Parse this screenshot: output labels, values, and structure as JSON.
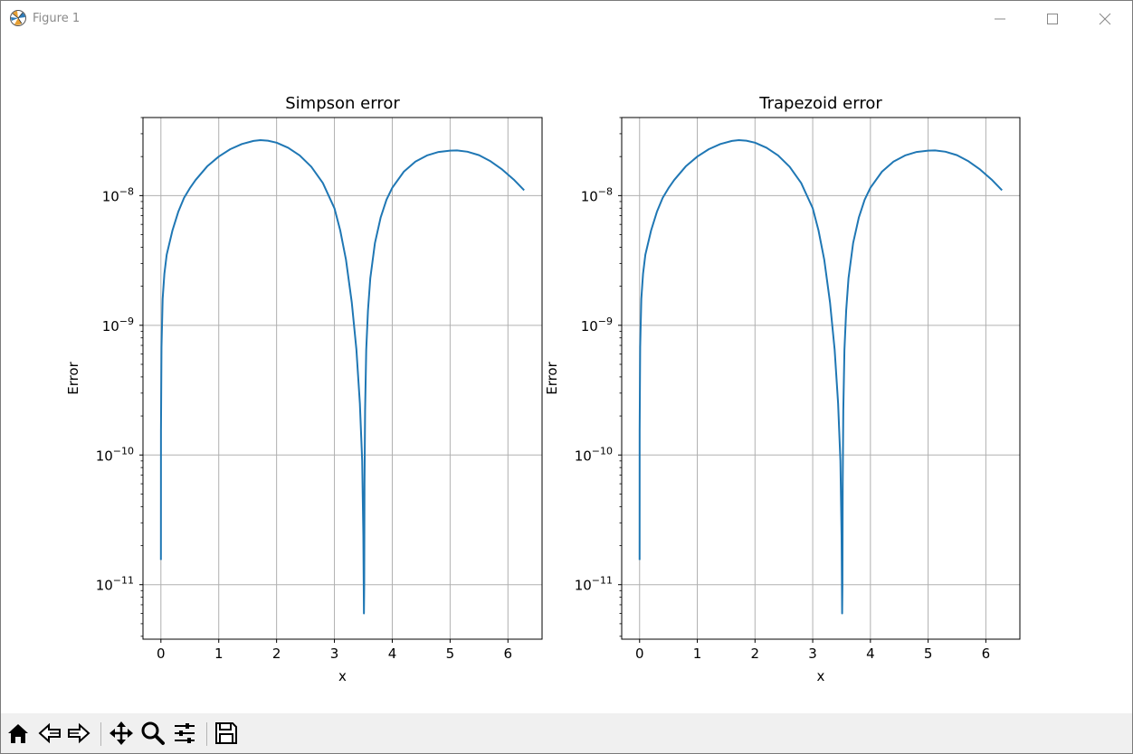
{
  "window": {
    "title": "Figure 1"
  },
  "colors": {
    "line": "#1f77b4",
    "grid": "#b0b0b0",
    "toolbar_bg": "#f0f0f0"
  },
  "toolbar": {
    "icons": [
      "home-icon",
      "back-arrow-icon",
      "forward-arrow-icon",
      "pan-icon",
      "zoom-icon",
      "configure-subplots-icon",
      "save-icon"
    ]
  },
  "chart_data": [
    {
      "type": "line",
      "title": "Simpson error",
      "xlabel": "x",
      "ylabel": "Error",
      "yscale": "log",
      "xlim": [
        -0.31,
        6.59
      ],
      "ylim": [
        3.8e-12,
        4e-08
      ],
      "xticks": [
        0,
        1,
        2,
        3,
        4,
        5,
        6
      ],
      "xtick_labels": [
        "0",
        "1",
        "2",
        "3",
        "4",
        "5",
        "6"
      ],
      "yticks": [
        1e-11,
        1e-10,
        1e-09,
        1e-08
      ],
      "ytick_labels": [
        [
          "10",
          "−11"
        ],
        [
          "10",
          "−10"
        ],
        [
          "10",
          "−9"
        ],
        [
          "10",
          "−8"
        ]
      ],
      "grid": true,
      "series": [
        {
          "x": [
            0,
            0.001,
            0.01,
            0.03,
            0.06,
            0.1,
            0.2,
            0.3,
            0.4,
            0.5,
            0.6,
            0.8,
            1.0,
            1.2,
            1.4,
            1.6,
            1.72,
            1.85,
            2.0,
            2.2,
            2.4,
            2.6,
            2.8,
            3.0,
            3.1,
            3.2,
            3.3,
            3.38,
            3.44,
            3.48,
            3.5,
            3.51,
            3.515,
            3.52,
            3.53,
            3.55,
            3.58,
            3.62,
            3.7,
            3.8,
            3.9,
            4.0,
            4.2,
            4.4,
            4.6,
            4.8,
            5.0,
            5.12,
            5.3,
            5.5,
            5.7,
            5.9,
            6.1,
            6.28
          ],
          "y": [
            1.55e-11,
            1.55e-10,
            6.8e-10,
            1.6e-09,
            2.5e-09,
            3.5e-09,
            5.4e-09,
            7.5e-09,
            9.6e-09,
            1.14e-08,
            1.32e-08,
            1.68e-08,
            2e-08,
            2.28e-08,
            2.5e-08,
            2.64e-08,
            2.68e-08,
            2.65e-08,
            2.56e-08,
            2.34e-08,
            2.04e-08,
            1.67e-08,
            1.25e-08,
            8e-09,
            5.4e-09,
            3.2e-09,
            1.5e-09,
            6.5e-10,
            2.5e-10,
            9e-11,
            2.4e-11,
            6e-12,
            1e-11,
            6e-11,
            2.2e-10,
            6.5e-10,
            1.3e-09,
            2.3e-09,
            4.3e-09,
            6.8e-09,
            9.3e-09,
            1.15e-08,
            1.53e-08,
            1.83e-08,
            2.04e-08,
            2.17e-08,
            2.22e-08,
            2.23e-08,
            2.18e-08,
            2.05e-08,
            1.84e-08,
            1.59e-08,
            1.33e-08,
            1.1e-08
          ]
        }
      ]
    },
    {
      "type": "line",
      "title": "Trapezoid error",
      "xlabel": "x",
      "ylabel": "Error",
      "yscale": "log",
      "xlim": [
        -0.31,
        6.59
      ],
      "ylim": [
        3.8e-12,
        4e-08
      ],
      "xticks": [
        0,
        1,
        2,
        3,
        4,
        5,
        6
      ],
      "xtick_labels": [
        "0",
        "1",
        "2",
        "3",
        "4",
        "5",
        "6"
      ],
      "yticks": [
        1e-11,
        1e-10,
        1e-09,
        1e-08
      ],
      "ytick_labels": [
        [
          "10",
          "−11"
        ],
        [
          "10",
          "−10"
        ],
        [
          "10",
          "−9"
        ],
        [
          "10",
          "−8"
        ]
      ],
      "grid": true,
      "series": [
        {
          "x": [
            0,
            0.001,
            0.01,
            0.03,
            0.06,
            0.1,
            0.2,
            0.3,
            0.4,
            0.5,
            0.6,
            0.8,
            1.0,
            1.2,
            1.4,
            1.6,
            1.72,
            1.85,
            2.0,
            2.2,
            2.4,
            2.6,
            2.8,
            3.0,
            3.1,
            3.2,
            3.3,
            3.38,
            3.44,
            3.48,
            3.5,
            3.51,
            3.515,
            3.52,
            3.53,
            3.55,
            3.58,
            3.62,
            3.7,
            3.8,
            3.9,
            4.0,
            4.2,
            4.4,
            4.6,
            4.8,
            5.0,
            5.12,
            5.3,
            5.5,
            5.7,
            5.9,
            6.1,
            6.28
          ],
          "y": [
            1.55e-11,
            1.55e-10,
            6.8e-10,
            1.6e-09,
            2.5e-09,
            3.5e-09,
            5.4e-09,
            7.5e-09,
            9.6e-09,
            1.14e-08,
            1.32e-08,
            1.68e-08,
            2e-08,
            2.28e-08,
            2.5e-08,
            2.64e-08,
            2.68e-08,
            2.65e-08,
            2.56e-08,
            2.34e-08,
            2.04e-08,
            1.67e-08,
            1.25e-08,
            8e-09,
            5.4e-09,
            3.2e-09,
            1.5e-09,
            6.5e-10,
            2.5e-10,
            9e-11,
            2.4e-11,
            6e-12,
            1e-11,
            6e-11,
            2.2e-10,
            6.5e-10,
            1.3e-09,
            2.3e-09,
            4.3e-09,
            6.8e-09,
            9.3e-09,
            1.15e-08,
            1.53e-08,
            1.83e-08,
            2.04e-08,
            2.17e-08,
            2.22e-08,
            2.23e-08,
            2.18e-08,
            2.05e-08,
            1.84e-08,
            1.59e-08,
            1.33e-08,
            1.1e-08
          ]
        }
      ]
    }
  ]
}
